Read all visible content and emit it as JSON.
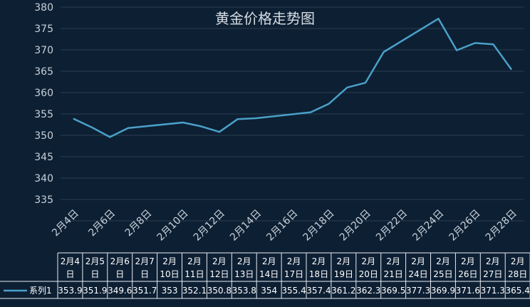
{
  "chart_data": {
    "type": "line",
    "title": "黄金价格走势图",
    "yticks": [
      "380",
      "375",
      "370",
      "365",
      "360",
      "355",
      "350",
      "345",
      "340",
      "335"
    ],
    "ylim": [
      330,
      380
    ],
    "x_axis_labels": [
      "2月4日",
      "2月6日",
      "2月8日",
      "2月10日",
      "2月12日",
      "2月14日",
      "2月16日",
      "2月18日",
      "2月20日",
      "2月22日",
      "2月24日",
      "2月26日",
      "2月28日"
    ],
    "categories": [
      [
        "2月4",
        "日"
      ],
      [
        "2月5",
        "日"
      ],
      [
        "2月6",
        "日"
      ],
      [
        "2月7",
        "日"
      ],
      [
        "2月",
        "10日"
      ],
      [
        "2月",
        "11日"
      ],
      [
        "2月",
        "12日"
      ],
      [
        "2月",
        "13日"
      ],
      [
        "2月",
        "14日"
      ],
      [
        "2月",
        "17日"
      ],
      [
        "2月",
        "18日"
      ],
      [
        "2月",
        "19日"
      ],
      [
        "2月",
        "20日"
      ],
      [
        "2月",
        "21日"
      ],
      [
        "2月",
        "24日"
      ],
      [
        "2月",
        "25日"
      ],
      [
        "2月",
        "26日"
      ],
      [
        "2月",
        "27日"
      ],
      [
        "2月",
        "28日"
      ]
    ],
    "x_dates": [
      4,
      5,
      6,
      7,
      10,
      11,
      12,
      13,
      14,
      17,
      18,
      19,
      20,
      21,
      24,
      25,
      26,
      27,
      28
    ],
    "series": [
      {
        "name": "系列1",
        "values": [
          "353.9",
          "351.9",
          "349.6",
          "351.7",
          "353",
          "352.1",
          "350.8",
          "353.8",
          "354",
          "355.4",
          "357.4",
          "361.2",
          "362.3",
          "369.5",
          "377.3",
          "369.9",
          "371.6",
          "371.3",
          "365.4"
        ]
      }
    ],
    "grid": true,
    "line_color": "#4aa0c8"
  }
}
